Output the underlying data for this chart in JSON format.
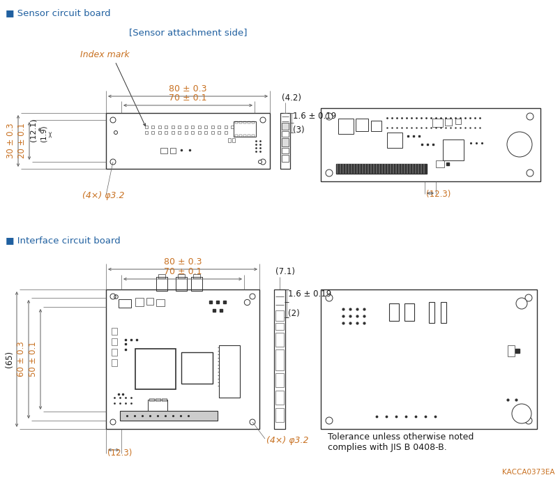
{
  "bg_color": "#ffffff",
  "text_color": "#1a1a1a",
  "blue_color": "#2060a0",
  "orange_color": "#c87020",
  "line_color": "#303030",
  "dim_line_color": "#606060",
  "section1_title": "■ Sensor circuit board",
  "section2_title": "■ Interface circuit board",
  "sensor_attachment_label": "[Sensor attachment side]",
  "index_mark_label": "Index mark",
  "dim_80_03": "80 ± 0.3",
  "dim_70_01": "70 ± 0.1",
  "dim_30_03": "30 ± 0.3",
  "dim_20_01": "20 ± 0.1",
  "dim_12_1": "(12.1)",
  "dim_1_9": "(1.9)",
  "dim_4x_32_top": "(4×) φ3.2",
  "dim_4_2": "(4.2)",
  "dim_1_6_019_top": "1.6 ± 0.19",
  "dim_3": "(3)",
  "dim_12_3_top": "(12.3)",
  "dim_80_03_bot": "80 ± 0.3",
  "dim_70_01_bot": "70 ± 0.1",
  "dim_65": "(65)",
  "dim_60_03": "60 ± 0.3",
  "dim_50_01": "50 ± 0.1",
  "dim_12_3_bot": "(12.3)",
  "dim_4x_32_bot": "(4×) φ3.2",
  "dim_7_1": "(7.1)",
  "dim_1_6_019_bot": "1.6 ± 0.19",
  "dim_2": "(2)",
  "tolerance_text": "Tolerance unless otherwise noted\ncomplies with JIS B 0408-B.",
  "catalog_num": "KACCA0373EA"
}
